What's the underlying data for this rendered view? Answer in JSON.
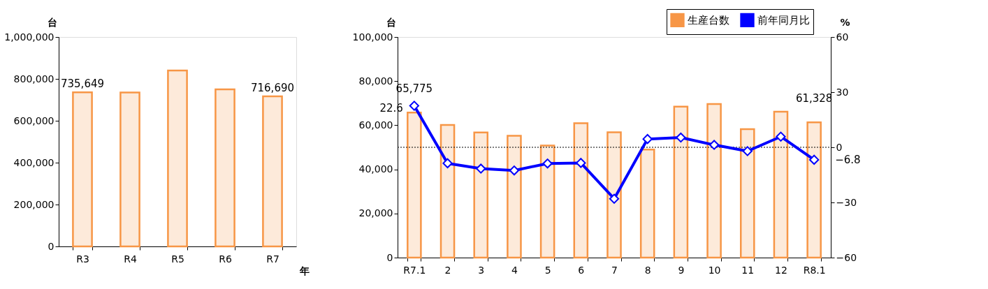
{
  "chart_data": [
    {
      "type": "bar",
      "ylabel": "台",
      "xlabel": "年",
      "categories": [
        "R3",
        "R4",
        "R5",
        "R6",
        "R7"
      ],
      "values": [
        735649,
        735000,
        840000,
        750000,
        716690
      ],
      "value_labels": [
        "735,649",
        null,
        null,
        null,
        "716,690"
      ],
      "color": "#f79646",
      "ylim": [
        0,
        1000000
      ],
      "yticks": [
        {
          "value": 0,
          "label": "0"
        },
        {
          "value": 200000,
          "label": "200,000"
        },
        {
          "value": 400000,
          "label": "400,000"
        },
        {
          "value": 600000,
          "label": "600,000"
        },
        {
          "value": 800000,
          "label": "800,000"
        },
        {
          "value": 1000000,
          "label": "1,000,000"
        }
      ],
      "grid": false,
      "legend": false
    },
    {
      "type": "bar",
      "ylabel": "台",
      "y2label": "%",
      "categories": [
        "R7.1",
        "2",
        "3",
        "4",
        "5",
        "6",
        "7",
        "8",
        "9",
        "10",
        "11",
        "12",
        "R8.1"
      ],
      "series": [
        {
          "name": "生産台数",
          "type": "bar",
          "color": "#f79646",
          "values": [
            65775,
            60100,
            56700,
            55200,
            50800,
            60900,
            56800,
            49000,
            68400,
            69600,
            58200,
            66100,
            61328
          ],
          "value_labels": [
            "65,775",
            null,
            null,
            null,
            null,
            null,
            null,
            null,
            null,
            null,
            null,
            null,
            "61,328"
          ]
        },
        {
          "name": "前年同月比",
          "type": "line",
          "axis": "y2",
          "color": "#0000ff",
          "marker": "diamond",
          "values": [
            22.6,
            -8.7,
            -11.6,
            -12.6,
            -8.8,
            -8.5,
            -28.0,
            4.5,
            5.3,
            1.3,
            -2.1,
            5.8,
            -6.8
          ],
          "value_labels": [
            "22.6",
            null,
            null,
            null,
            null,
            null,
            null,
            null,
            null,
            null,
            null,
            null,
            "−6.8"
          ]
        }
      ],
      "ylim": [
        0,
        100000
      ],
      "yticks": [
        {
          "value": 0,
          "label": "0"
        },
        {
          "value": 20000,
          "label": "20,000"
        },
        {
          "value": 40000,
          "label": "40,000"
        },
        {
          "value": 60000,
          "label": "60,000"
        },
        {
          "value": 80000,
          "label": "80,000"
        },
        {
          "value": 100000,
          "label": "100,000"
        }
      ],
      "y2lim": [
        -60,
        60
      ],
      "y2ticks": [
        {
          "value": -60,
          "label": "−60"
        },
        {
          "value": -30,
          "label": "−30"
        },
        0,
        30,
        60
      ],
      "ref_lines": [
        {
          "axis": "y2",
          "value": 0,
          "label": null,
          "color": "#000000",
          "line_style": "dotted"
        }
      ],
      "grid": false,
      "legend": "top right"
    }
  ]
}
